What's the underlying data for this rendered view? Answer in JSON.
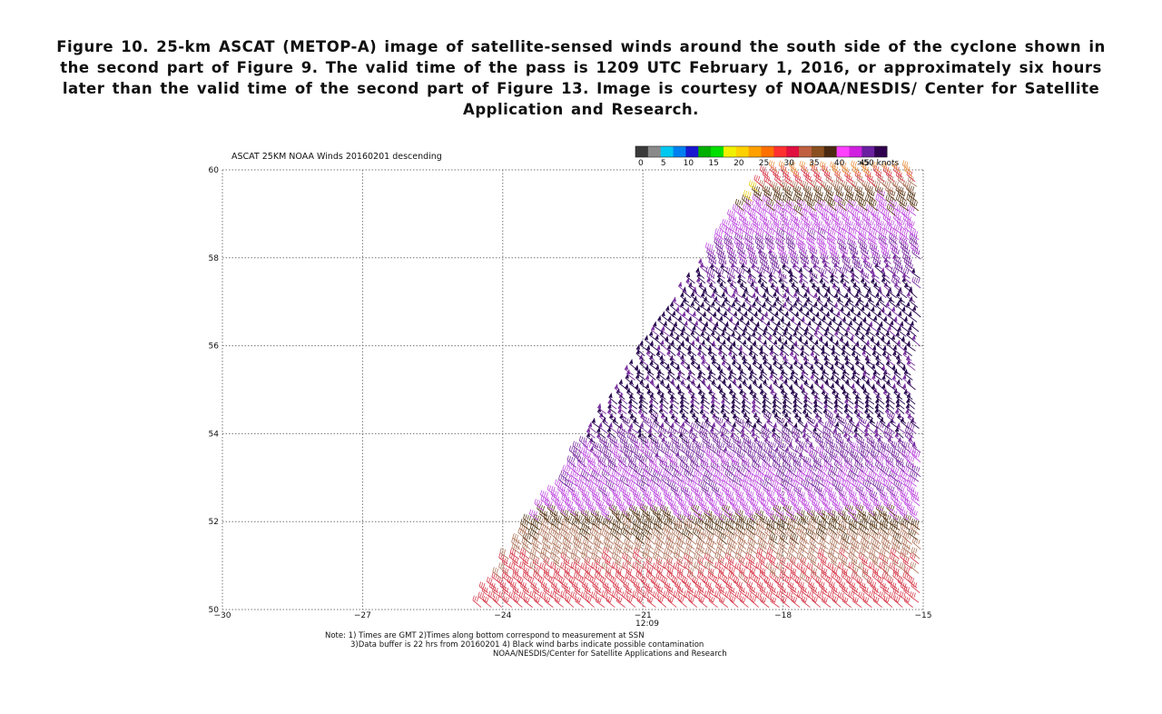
{
  "caption": {
    "text": "Figure 10. 25-km ASCAT (METOP-A) image of satellite-sensed winds around the south side of the cyclone shown in the second part of Figure 9. The valid time of the pass is 1209 UTC February 1, 2016, or approximately six hours later than the valid time of the second part of Figure 13. Image is courtesy of NOAA/NESDIS/ Center for Satellite Application and Research."
  },
  "chart_data": {
    "type": "scatter",
    "title": "ASCAT 25KM NOAA Winds 20160201 descending",
    "xlim": [
      -30,
      -15
    ],
    "ylim": [
      50,
      60
    ],
    "x_ticks": [
      -30,
      -27,
      -24,
      -21,
      -18,
      -15
    ],
    "x_tick_labels": [
      "−30",
      "−27",
      "−24",
      "−21",
      "−18",
      "−15"
    ],
    "y_ticks": [
      50,
      52,
      54,
      56,
      58,
      60
    ],
    "y_tick_labels": [
      "50",
      "52",
      "54",
      "56",
      "58",
      "60"
    ],
    "grid": true,
    "time_label": "12:09",
    "colorbar": {
      "labels": [
        "0",
        "5",
        "10",
        "15",
        "20",
        "25",
        "30",
        "35",
        "40",
        "45",
        ">50 knots"
      ],
      "colors": [
        "#3a3a3a",
        "#8a8a8a",
        "#00c8f0",
        "#0080f0",
        "#1818d0",
        "#00b000",
        "#00e000",
        "#f0f000",
        "#ffd000",
        "#ffa000",
        "#ff7000",
        "#ff3030",
        "#e01040",
        "#c06040",
        "#8a5020",
        "#4a2a10",
        "#ff40ff",
        "#d020e0",
        "#6a20a0",
        "#300050"
      ]
    },
    "swath": {
      "description_bins_knots": [
        20,
        25,
        30,
        35,
        40,
        45,
        50
      ],
      "speed_by_latitude": [
        {
          "lat": 50.0,
          "knots": 30
        },
        {
          "lat": 51.0,
          "knots": 33
        },
        {
          "lat": 51.8,
          "knots": 38
        },
        {
          "lat": 52.5,
          "knots": 45
        },
        {
          "lat": 53.5,
          "knots": 47
        },
        {
          "lat": 54.5,
          "knots": 50
        },
        {
          "lat": 57.0,
          "knots": 50
        },
        {
          "lat": 58.2,
          "knots": 46
        },
        {
          "lat": 59.3,
          "knots": 40
        },
        {
          "lat": 60.0,
          "knots": 25
        }
      ],
      "series_colors": {
        "yellow": "#e8d020",
        "orange": "#e89040",
        "red": "#d84050",
        "tan": "#b07860",
        "brown": "#5a3a1a",
        "magenta": "#c050e0",
        "purple": "#7a30a0",
        "dark_purple": "#2a0a50"
      }
    }
  },
  "notes": {
    "line1": "Note: 1) Times are GMT 2)Times along bottom correspond to measurement at SSN",
    "line2": "3)Data buffer is 22 hrs from 20160201 4) Black wind barbs indicate possible contamination",
    "line3": "NOAA/NESDIS/Center for Satellite Applications and Research"
  }
}
